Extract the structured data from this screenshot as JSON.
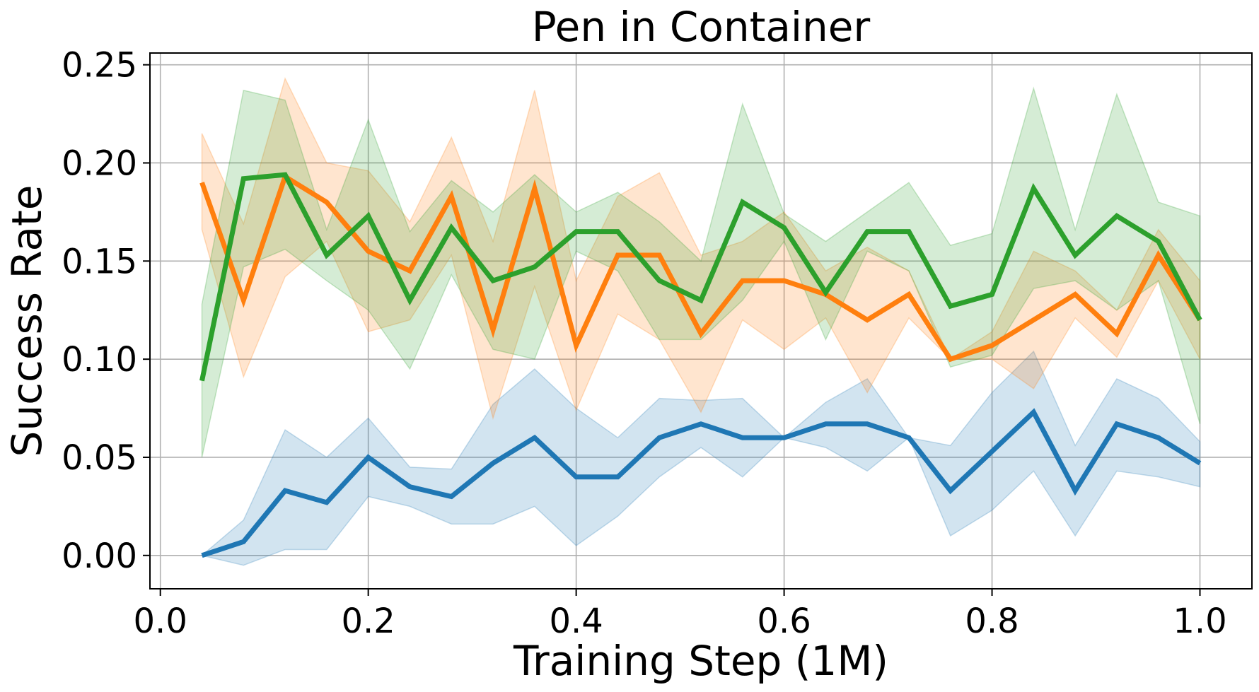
{
  "chart_data": {
    "type": "line",
    "title": "Pen in Container",
    "xlabel": "Training Step (1M)",
    "ylabel": "Success Rate",
    "xlim": [
      -0.01,
      1.05
    ],
    "ylim": [
      -0.017,
      0.256
    ],
    "grid": true,
    "xticks": [
      0.0,
      0.2,
      0.4,
      0.6,
      0.8,
      1.0
    ],
    "xtick_labels": [
      "0.0",
      "0.2",
      "0.4",
      "0.6",
      "0.8",
      "1.0"
    ],
    "yticks": [
      0.0,
      0.05,
      0.1,
      0.15,
      0.2,
      0.25
    ],
    "ytick_labels": [
      "0.00",
      "0.05",
      "0.10",
      "0.15",
      "0.20",
      "0.25"
    ],
    "x": [
      0.04,
      0.08,
      0.12,
      0.16,
      0.2,
      0.24,
      0.28,
      0.32,
      0.36,
      0.4,
      0.44,
      0.48,
      0.52,
      0.56,
      0.6,
      0.64,
      0.68,
      0.72,
      0.76,
      0.8,
      0.84,
      0.88,
      0.92,
      0.96,
      1.0
    ],
    "series": [
      {
        "color": "#1f77b4",
        "values": [
          0.0,
          0.007,
          0.033,
          0.027,
          0.05,
          0.035,
          0.03,
          0.047,
          0.06,
          0.04,
          0.04,
          0.06,
          0.067,
          0.06,
          0.06,
          0.067,
          0.067,
          0.06,
          0.033,
          0.053,
          0.073,
          0.033,
          0.067,
          0.06,
          0.047
        ],
        "lower": [
          0.0,
          -0.005,
          0.003,
          0.003,
          0.03,
          0.025,
          0.016,
          0.016,
          0.025,
          0.005,
          0.02,
          0.04,
          0.055,
          0.04,
          0.06,
          0.055,
          0.043,
          0.06,
          0.01,
          0.023,
          0.043,
          0.01,
          0.043,
          0.04,
          0.035
        ],
        "upper": [
          0.0,
          0.018,
          0.064,
          0.05,
          0.07,
          0.045,
          0.044,
          0.077,
          0.095,
          0.075,
          0.06,
          0.08,
          0.079,
          0.08,
          0.06,
          0.078,
          0.09,
          0.06,
          0.056,
          0.083,
          0.104,
          0.056,
          0.09,
          0.08,
          0.058
        ]
      },
      {
        "color": "#ff7f0e",
        "values": [
          0.19,
          0.13,
          0.193,
          0.18,
          0.155,
          0.145,
          0.183,
          0.115,
          0.187,
          0.107,
          0.153,
          0.153,
          0.113,
          0.14,
          0.14,
          0.133,
          0.12,
          0.133,
          0.1,
          0.107,
          0.12,
          0.133,
          0.113,
          0.153,
          0.12
        ],
        "lower": [
          0.166,
          0.091,
          0.142,
          0.16,
          0.114,
          0.12,
          0.153,
          0.07,
          0.137,
          0.074,
          0.123,
          0.11,
          0.073,
          0.12,
          0.105,
          0.121,
          0.083,
          0.121,
          0.1,
          0.1,
          0.085,
          0.121,
          0.101,
          0.14,
          0.1
        ],
        "upper": [
          0.215,
          0.169,
          0.243,
          0.2,
          0.196,
          0.17,
          0.213,
          0.16,
          0.237,
          0.14,
          0.183,
          0.195,
          0.153,
          0.16,
          0.175,
          0.145,
          0.157,
          0.145,
          0.1,
          0.114,
          0.155,
          0.145,
          0.125,
          0.166,
          0.14
        ]
      },
      {
        "color": "#2ca02c",
        "values": [
          0.089,
          0.192,
          0.194,
          0.153,
          0.173,
          0.13,
          0.167,
          0.14,
          0.147,
          0.165,
          0.165,
          0.14,
          0.13,
          0.18,
          0.167,
          0.134,
          0.165,
          0.165,
          0.127,
          0.133,
          0.187,
          0.153,
          0.173,
          0.16,
          0.12
        ],
        "lower": [
          0.05,
          0.147,
          0.156,
          0.14,
          0.125,
          0.095,
          0.143,
          0.105,
          0.1,
          0.155,
          0.145,
          0.11,
          0.11,
          0.13,
          0.16,
          0.11,
          0.155,
          0.145,
          0.096,
          0.102,
          0.136,
          0.14,
          0.125,
          0.14,
          0.067
        ],
        "upper": [
          0.128,
          0.237,
          0.232,
          0.166,
          0.222,
          0.165,
          0.191,
          0.175,
          0.194,
          0.175,
          0.185,
          0.17,
          0.15,
          0.23,
          0.174,
          0.16,
          0.175,
          0.19,
          0.158,
          0.164,
          0.238,
          0.166,
          0.235,
          0.18,
          0.173
        ]
      }
    ]
  }
}
